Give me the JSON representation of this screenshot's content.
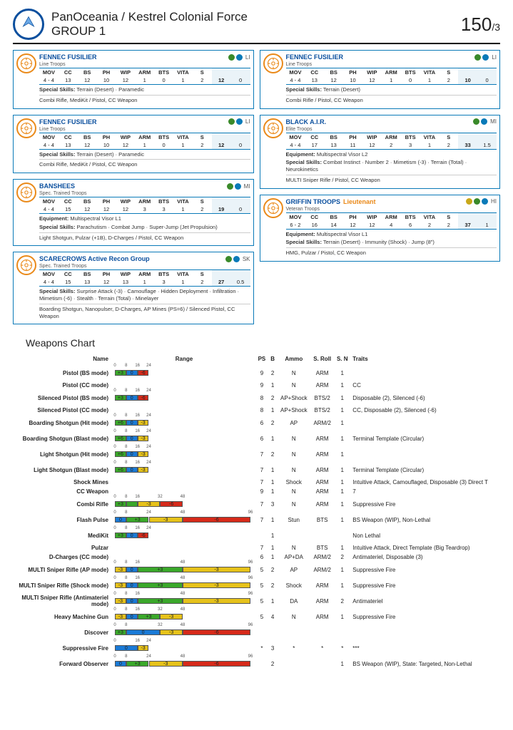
{
  "header": {
    "faction": "PanOceania / Kestrel Colonial Force",
    "group": "GROUP 1",
    "points": "150",
    "swc": "/3"
  },
  "colors": {
    "border": "#0a7ab8",
    "accent": "#ea8a1a",
    "green": "#3aa82a",
    "blue": "#1a7ad6",
    "yellow": "#e6c21a",
    "red": "#d62a1a"
  },
  "units_left": [
    {
      "name": "FENNEC FUSILIER",
      "class": "Line Troops",
      "type": "LI",
      "dots": [
        "g",
        "b"
      ],
      "stats": {
        "MOV": "4 - 4",
        "CC": "13",
        "BS": "12",
        "PH": "10",
        "WIP": "12",
        "ARM": "1",
        "BTS": "0",
        "VITA": "1",
        "S": "2",
        "PTS": "12",
        "SWC": "0"
      },
      "lines": [
        {
          "l": "Special Skills",
          "v": "Terrain (Desert) · Paramedic"
        },
        {
          "l": "",
          "v": "Combi Rifle, MediKit / Pistol, CC Weapon"
        }
      ]
    },
    {
      "name": "FENNEC FUSILIER",
      "class": "Line Troops",
      "type": "LI",
      "dots": [
        "g",
        "b"
      ],
      "stats": {
        "MOV": "4 - 4",
        "CC": "13",
        "BS": "12",
        "PH": "10",
        "WIP": "12",
        "ARM": "1",
        "BTS": "0",
        "VITA": "1",
        "S": "2",
        "PTS": "12",
        "SWC": "0"
      },
      "lines": [
        {
          "l": "Special Skills",
          "v": "Terrain (Desert) · Paramedic"
        },
        {
          "l": "",
          "v": "Combi Rifle, MediKit / Pistol, CC Weapon"
        }
      ]
    },
    {
      "name": "BANSHEES",
      "class": "Spec. Trained Troops",
      "type": "MI",
      "dots": [
        "g",
        "b"
      ],
      "stats": {
        "MOV": "4 - 4",
        "CC": "15",
        "BS": "12",
        "PH": "12",
        "WIP": "12",
        "ARM": "3",
        "BTS": "3",
        "VITA": "1",
        "S": "2",
        "PTS": "19",
        "SWC": "0"
      },
      "lines": [
        {
          "l": "Equipment",
          "v": "Multispectral Visor L1"
        },
        {
          "l": "Special Skills",
          "v": "Parachutism · Combat Jump · Super-Jump (Jet Propulsion)"
        },
        {
          "l": "",
          "v": "Light Shotgun, Pulzar (+1B), D-Charges / Pistol, CC Weapon"
        }
      ]
    },
    {
      "name": "SCARECROWS Active Recon Group",
      "class": "Spec. Trained Troops",
      "type": "SK",
      "dots": [
        "g",
        "b"
      ],
      "stats": {
        "MOV": "4 - 4",
        "CC": "15",
        "BS": "13",
        "PH": "12",
        "WIP": "13",
        "ARM": "1",
        "BTS": "3",
        "VITA": "1",
        "S": "2",
        "PTS": "27",
        "SWC": "0.5"
      },
      "lines": [
        {
          "l": "Special Skills",
          "v": "Surprise Attack (-3) · Camouflage · Hidden Deployment · Infiltration · Mimetism (-6) · Stealth · Terrain (Total) · Minelayer"
        },
        {
          "l": "",
          "v": "Boarding Shotgun, Nanopulser, D-Charges, AP Mines (PS=6) / Silenced Pistol, CC Weapon"
        }
      ]
    }
  ],
  "units_right": [
    {
      "name": "FENNEC FUSILIER",
      "class": "Line Troops",
      "type": "LI",
      "dots": [
        "g",
        "b"
      ],
      "stats": {
        "MOV": "4 - 4",
        "CC": "13",
        "BS": "12",
        "PH": "10",
        "WIP": "12",
        "ARM": "1",
        "BTS": "0",
        "VITA": "1",
        "S": "2",
        "PTS": "10",
        "SWC": "0"
      },
      "lines": [
        {
          "l": "Special Skills",
          "v": "Terrain (Desert)"
        },
        {
          "l": "",
          "v": "Combi Rifle / Pistol, CC Weapon"
        }
      ]
    },
    {
      "name": "BLACK A.I.R.",
      "class": "Elite Troops",
      "type": "MI",
      "dots": [
        "g",
        "b"
      ],
      "stats": {
        "MOV": "4 - 4",
        "CC": "17",
        "BS": "13",
        "PH": "11",
        "WIP": "12",
        "ARM": "2",
        "BTS": "3",
        "VITA": "1",
        "S": "2",
        "PTS": "33",
        "SWC": "1.5"
      },
      "lines": [
        {
          "l": "Equipment",
          "v": "Multispectral Visor L2"
        },
        {
          "l": "Special Skills",
          "v": "Combat Instinct · Number 2 · Mimetism (-3) · Terrain (Total) · Neurokinetics"
        },
        {
          "l": "",
          "v": "MULTI Sniper Rifle / Pistol, CC Weapon"
        }
      ]
    },
    {
      "name": "GRIFFIN TROOPS",
      "lt": "Lieutenant",
      "class": "Veteran Troops",
      "type": "HI",
      "dots": [
        "y",
        "g",
        "b"
      ],
      "stats": {
        "MOV": "6 - 2",
        "CC": "16",
        "BS": "14",
        "PH": "12",
        "WIP": "12",
        "ARM": "4",
        "BTS": "6",
        "VITA": "2",
        "S": "2",
        "PTS": "37",
        "SWC": "1"
      },
      "lines": [
        {
          "l": "Equipment",
          "v": "Multispectral Visor L1"
        },
        {
          "l": "Special Skills",
          "v": "Terrain (Desert) · Immunity (Shock) · Jump (8\")"
        },
        {
          "l": "",
          "v": "HMG, Pulzar / Pistol, CC Weapon"
        }
      ]
    }
  ],
  "weapons_title": "Weapons Chart",
  "range_max": 96,
  "weapon_headers": [
    "Name",
    "Range",
    "PS",
    "B",
    "Ammo",
    "S. Roll",
    "S. N",
    "Traits"
  ],
  "weapons": [
    {
      "name": "Pistol (BS mode)",
      "range": [
        {
          "to": 8,
          "c": "g",
          "m": "+3"
        },
        {
          "to": 16,
          "c": "b",
          "m": "0"
        },
        {
          "to": 24,
          "c": "r",
          "m": "-6"
        }
      ],
      "ps": "9",
      "b": "2",
      "ammo": "N",
      "sroll": "ARM",
      "sn": "1",
      "traits": ""
    },
    {
      "name": "Pistol (CC mode)",
      "range": [],
      "ps": "9",
      "b": "1",
      "ammo": "N",
      "sroll": "ARM",
      "sn": "1",
      "traits": "CC"
    },
    {
      "name": "Silenced Pistol (BS mode)",
      "range": [
        {
          "to": 8,
          "c": "g",
          "m": "+3"
        },
        {
          "to": 16,
          "c": "b",
          "m": "0"
        },
        {
          "to": 24,
          "c": "r",
          "m": "-6"
        }
      ],
      "ps": "8",
      "b": "2",
      "ammo": "AP+Shock",
      "sroll": "BTS/2",
      "sn": "1",
      "traits": "Disposable (2), Silenced (-6)"
    },
    {
      "name": "Silenced Pistol (CC mode)",
      "range": [],
      "ps": "8",
      "b": "1",
      "ammo": "AP+Shock",
      "sroll": "BTS/2",
      "sn": "1",
      "traits": "CC, Disposable (2), Silenced (-6)"
    },
    {
      "name": "Boarding Shotgun (Hit mode)",
      "range": [
        {
          "to": 8,
          "c": "g",
          "m": "+6"
        },
        {
          "to": 16,
          "c": "b",
          "m": "0"
        },
        {
          "to": 24,
          "c": "y",
          "m": "-3"
        }
      ],
      "ps": "6",
      "b": "2",
      "ammo": "AP",
      "sroll": "ARM/2",
      "sn": "1",
      "traits": ""
    },
    {
      "name": "Boarding Shotgun (Blast mode)",
      "range": [
        {
          "to": 8,
          "c": "g",
          "m": "+6"
        },
        {
          "to": 16,
          "c": "b",
          "m": "0"
        },
        {
          "to": 24,
          "c": "y",
          "m": "-3"
        }
      ],
      "ps": "6",
      "b": "1",
      "ammo": "N",
      "sroll": "ARM",
      "sn": "1",
      "traits": "Terminal Template (Circular)"
    },
    {
      "name": "Light Shotgun (Hit mode)",
      "range": [
        {
          "to": 8,
          "c": "g",
          "m": "+6"
        },
        {
          "to": 16,
          "c": "b",
          "m": "0"
        },
        {
          "to": 24,
          "c": "y",
          "m": "-3"
        }
      ],
      "ps": "7",
      "b": "2",
      "ammo": "N",
      "sroll": "ARM",
      "sn": "1",
      "traits": ""
    },
    {
      "name": "Light Shotgun (Blast mode)",
      "range": [
        {
          "to": 8,
          "c": "g",
          "m": "+6"
        },
        {
          "to": 16,
          "c": "b",
          "m": "0"
        },
        {
          "to": 24,
          "c": "y",
          "m": "-3"
        }
      ],
      "ps": "7",
      "b": "1",
      "ammo": "N",
      "sroll": "ARM",
      "sn": "1",
      "traits": "Terminal Template (Circular)"
    },
    {
      "name": "Shock Mines",
      "range": [],
      "ps": "7",
      "b": "1",
      "ammo": "Shock",
      "sroll": "ARM",
      "sn": "1",
      "traits": "Intuitive Attack, Camouflaged, Disposable (3) Direct T"
    },
    {
      "name": "CC Weapon",
      "range": [],
      "ps": "9",
      "b": "1",
      "ammo": "N",
      "sroll": "ARM",
      "sn": "1",
      "traits": "7"
    },
    {
      "name": "Combi Rifle",
      "range": [
        {
          "to": 8,
          "c": "g",
          "m": "+3"
        },
        {
          "to": 16,
          "c": "g",
          "m": ""
        },
        {
          "to": 32,
          "c": "y",
          "m": "-3"
        },
        {
          "to": 48,
          "c": "r",
          "m": "-6"
        }
      ],
      "ps": "7",
      "b": "3",
      "ammo": "N",
      "sroll": "ARM",
      "sn": "1",
      "traits": "Suppressive Fire"
    },
    {
      "name": "Flash Pulse",
      "range": [
        {
          "to": 8,
          "c": "b",
          "m": "0"
        },
        {
          "to": 24,
          "c": "g",
          "m": "+3"
        },
        {
          "to": 48,
          "c": "y",
          "m": "-3"
        },
        {
          "to": 96,
          "c": "r",
          "m": "-6"
        }
      ],
      "ps": "7",
      "b": "1",
      "ammo": "Stun",
      "sroll": "BTS",
      "sn": "1",
      "traits": "BS Weapon (WIP), Non-Lethal"
    },
    {
      "name": "MediKit",
      "range": [
        {
          "to": 8,
          "c": "g",
          "m": "+3"
        },
        {
          "to": 16,
          "c": "b",
          "m": "0"
        },
        {
          "to": 24,
          "c": "r",
          "m": "-6"
        }
      ],
      "ps": "",
      "b": "1",
      "ammo": "",
      "sroll": "",
      "sn": "",
      "traits": "Non Lethal"
    },
    {
      "name": "Pulzar",
      "range": [],
      "ps": "7",
      "b": "1",
      "ammo": "N",
      "sroll": "BTS",
      "sn": "1",
      "traits": "Intuitive Attack, Direct Template (Big Teardrop)"
    },
    {
      "name": "D-Charges (CC mode)",
      "range": [],
      "ps": "6",
      "b": "1",
      "ammo": "AP+DA",
      "sroll": "ARM/2",
      "sn": "2",
      "traits": "Antimateriel, Disposable (3)"
    },
    {
      "name": "MULTI Sniper Rifle (AP mode)",
      "range": [
        {
          "to": 8,
          "c": "y",
          "m": "-3"
        },
        {
          "to": 16,
          "c": "b",
          "m": "0"
        },
        {
          "to": 48,
          "c": "g",
          "m": "+3"
        },
        {
          "to": 96,
          "c": "y",
          "m": "-3"
        }
      ],
      "ps": "5",
      "b": "2",
      "ammo": "AP",
      "sroll": "ARM/2",
      "sn": "1",
      "traits": "Suppressive Fire"
    },
    {
      "name": "MULTI Sniper Rifle (Shock mode)",
      "range": [
        {
          "to": 8,
          "c": "y",
          "m": "-3"
        },
        {
          "to": 16,
          "c": "b",
          "m": "0"
        },
        {
          "to": 48,
          "c": "g",
          "m": "+3"
        },
        {
          "to": 96,
          "c": "y",
          "m": "-3"
        }
      ],
      "ps": "5",
      "b": "2",
      "ammo": "Shock",
      "sroll": "ARM",
      "sn": "1",
      "traits": "Suppressive Fire"
    },
    {
      "name": "MULTI Sniper Rifle (Antimateriel mode)",
      "range": [
        {
          "to": 8,
          "c": "y",
          "m": "-3"
        },
        {
          "to": 16,
          "c": "b",
          "m": "0"
        },
        {
          "to": 48,
          "c": "g",
          "m": "+3"
        },
        {
          "to": 96,
          "c": "y",
          "m": "-3"
        }
      ],
      "ps": "5",
      "b": "1",
      "ammo": "DA",
      "sroll": "ARM",
      "sn": "2",
      "traits": "Antimateriel"
    },
    {
      "name": "Heavy Machine Gun",
      "range": [
        {
          "to": 8,
          "c": "y",
          "m": "-3"
        },
        {
          "to": 16,
          "c": "b",
          "m": "0"
        },
        {
          "to": 32,
          "c": "g",
          "m": "+3"
        },
        {
          "to": 48,
          "c": "y",
          "m": "-3"
        }
      ],
      "ps": "5",
      "b": "4",
      "ammo": "N",
      "sroll": "ARM",
      "sn": "1",
      "traits": "Suppressive Fire"
    },
    {
      "name": "Discover",
      "range": [
        {
          "to": 8,
          "c": "g",
          "m": "+3"
        },
        {
          "to": 32,
          "c": "b",
          "m": "0"
        },
        {
          "to": 48,
          "c": "y",
          "m": "-3"
        },
        {
          "to": 96,
          "c": "r",
          "m": "-6"
        }
      ],
      "ps": "",
      "b": "",
      "ammo": "",
      "sroll": "",
      "sn": "",
      "traits": ""
    },
    {
      "name": "Suppressive Fire",
      "range": [
        {
          "to": 16,
          "c": "b",
          "m": "0"
        },
        {
          "to": 24,
          "c": "y",
          "m": "-3"
        }
      ],
      "ps": "*",
      "b": "3",
      "ammo": "*",
      "sroll": "*",
      "sn": "*",
      "traits": "***"
    },
    {
      "name": "Forward Observer",
      "range": [
        {
          "to": 8,
          "c": "b",
          "m": "0"
        },
        {
          "to": 24,
          "c": "g",
          "m": "+3"
        },
        {
          "to": 48,
          "c": "y",
          "m": "-3"
        },
        {
          "to": 96,
          "c": "r",
          "m": "-6"
        }
      ],
      "ps": "",
      "b": "2",
      "ammo": "",
      "sroll": "",
      "sn": "1",
      "traits": "BS Weapon (WIP), State: Targeted, Non-Lethal"
    }
  ]
}
